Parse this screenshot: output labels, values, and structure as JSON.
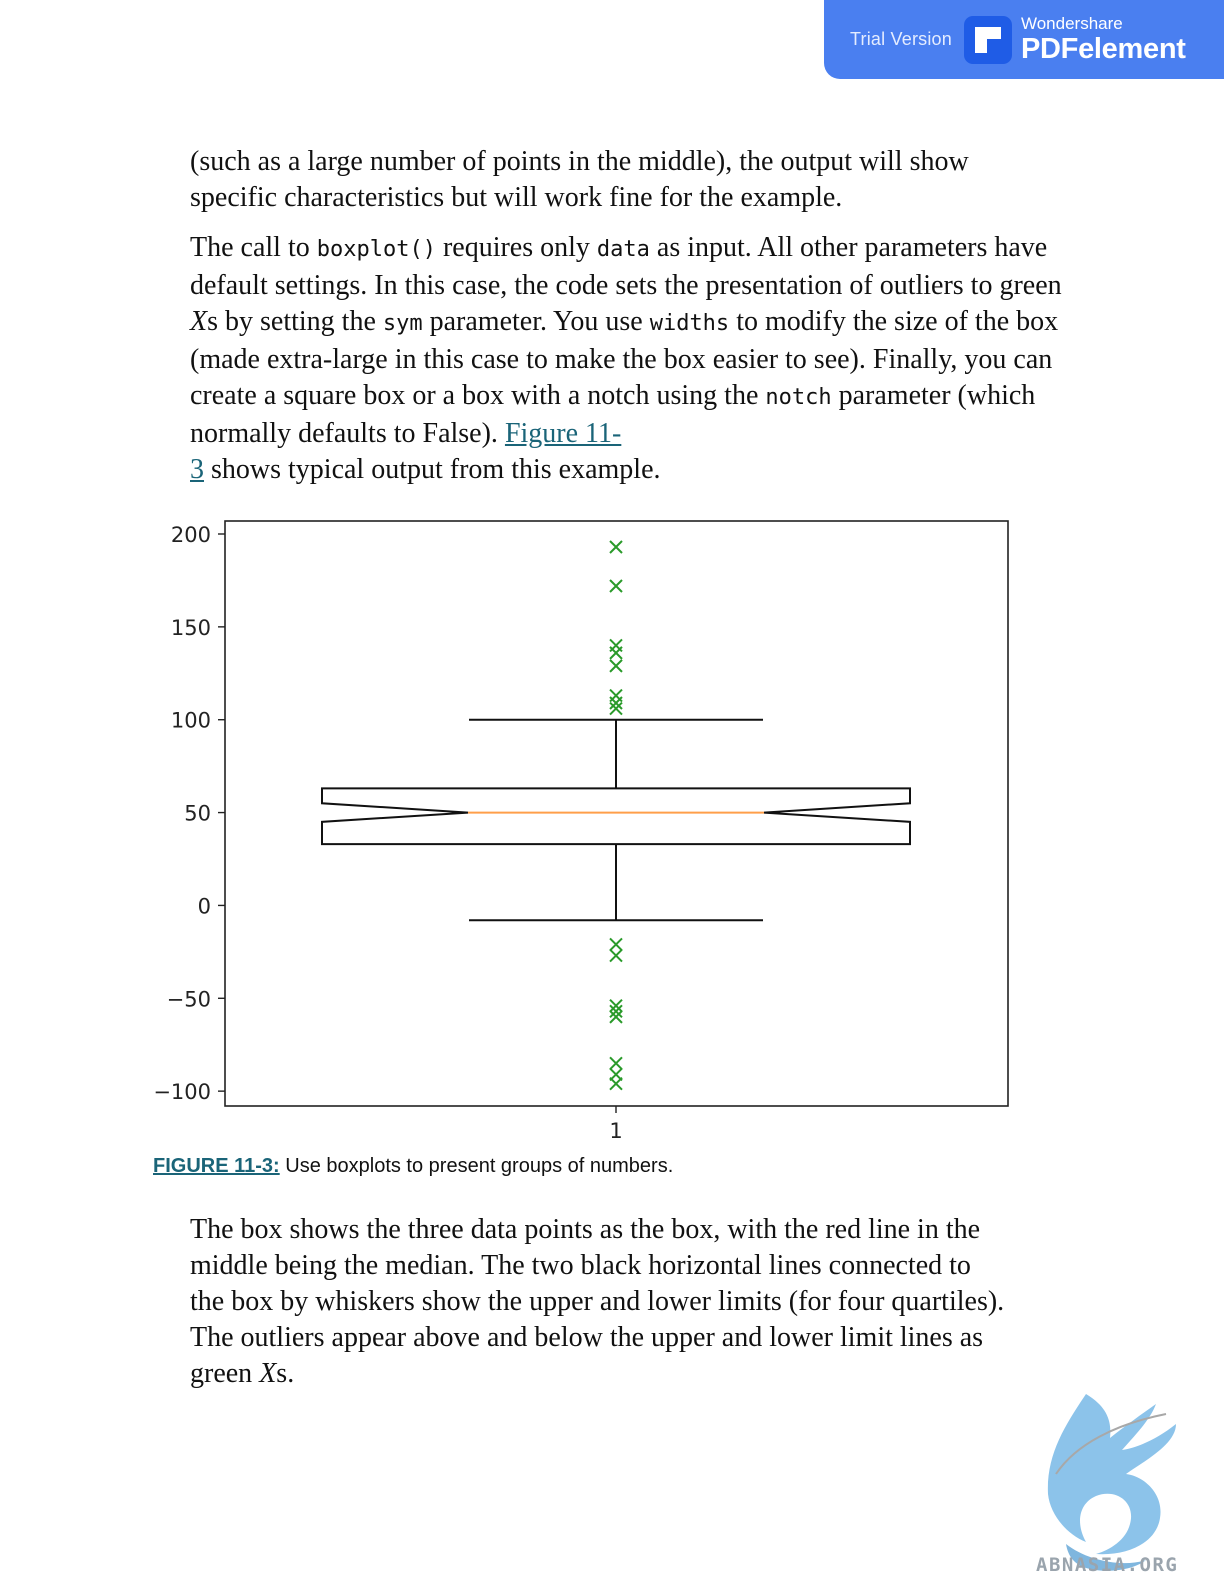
{
  "watermark": {
    "trial_label": "Trial Version",
    "brand_small": "Wondershare",
    "brand_large": "PDFelement",
    "logo_icon": "pdfelement-logo-icon",
    "site": "ABNASIA.ORG",
    "site_icon": "griffin-logo-icon",
    "banner_color": "#4a7ff0"
  },
  "para1": {
    "line1": "(such as a large number of points in the middle), the output will show",
    "line2": "specific characteristics but will work fine for the example."
  },
  "para2": {
    "t1": "The call to ",
    "c1": "boxplot()",
    "t2": " requires only ",
    "c2": "data",
    "t3": " as input. All other parameters have default settings. In this case, the code sets the presentation of outliers to green ",
    "x1": "X",
    "t4": "s by setting the ",
    "c3": "sym",
    "t5": " parameter. You use ",
    "c4": "widths",
    "t6": " to modify the size of the box (made extra-large in this case to make the box easier to see). Finally, you can create a square box or a box with a notch using the ",
    "c5": "notch",
    "t7": " parameter (which normally defaults to False). ",
    "link1": "Figure 11-",
    "link2": "3",
    "t8": " shows typical output from this example."
  },
  "chart_data": {
    "type": "boxplot",
    "categories": [
      "1"
    ],
    "ylim": [
      -108,
      207
    ],
    "yticks": [
      200,
      150,
      100,
      50,
      0,
      -50,
      -100
    ],
    "ytick_labels": [
      "200",
      "150",
      "100",
      "50",
      "0",
      "−50",
      "−100"
    ],
    "xtick_labels": [
      "1"
    ],
    "notch": true,
    "outlier_marker": "x",
    "box": {
      "q1": 33,
      "median": 50,
      "q3": 63,
      "notch_low": 45,
      "notch_high": 55,
      "whisker_low": -8,
      "whisker_high": 100
    },
    "outliers": [
      193,
      172,
      140,
      136,
      129,
      113,
      109,
      106,
      -21,
      -27,
      -54,
      -57,
      -60,
      -85,
      -91,
      -96
    ],
    "colors": {
      "box": "#111111",
      "median": "#ff9f4a",
      "outlier": "#2a9a2a"
    }
  },
  "caption": {
    "label": "FIGURE 11-3:",
    "text": " Use boxplots to present groups of numbers."
  },
  "para3": {
    "line1": "The box shows the three data points as the box, with the red line in the",
    "line2": "middle being the median. The two black horizontal lines connected to",
    "line3": "the box by whiskers show the upper and lower limits (for four quartiles).",
    "line4": "The outliers appear above and below the upper and lower limit lines as",
    "line5a": "green ",
    "line5x": "X",
    "line5b": "s."
  }
}
